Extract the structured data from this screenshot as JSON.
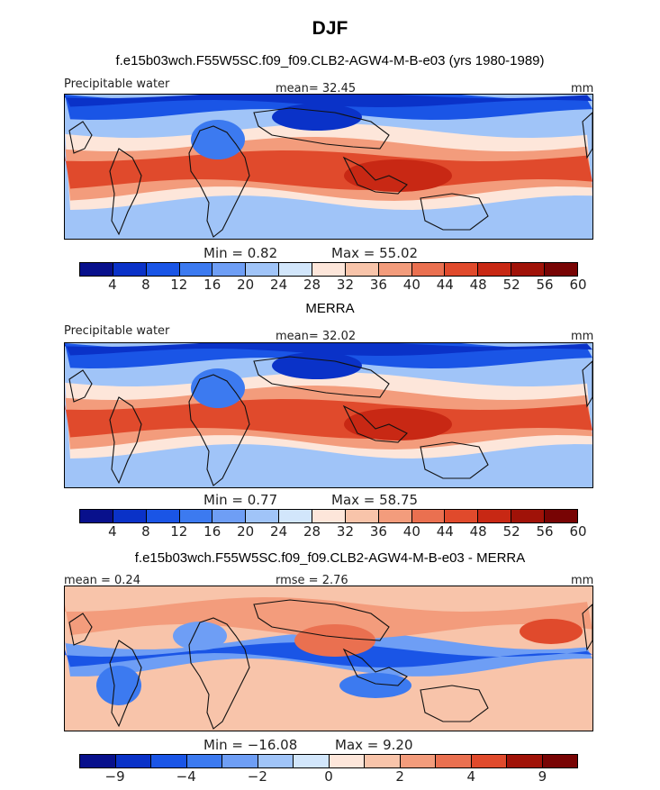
{
  "header": {
    "season": "DJF",
    "run_title": "f.e15b03wch.F55W5SC.f09_f09.CLB2-AGW4-M-B-e03 (yrs 1980-1989)"
  },
  "panels": [
    {
      "variable": "Precipitable water",
      "mean_text": "mean=   32.45",
      "units": "mm",
      "min_text": "Min =    0.82",
      "max_text": "Max =   55.02"
    },
    {
      "title": "MERRA",
      "variable": "Precipitable water",
      "mean_text": "mean=   32.02",
      "units": "mm",
      "min_text": "Min =    0.77",
      "max_text": "Max =   58.75"
    },
    {
      "title": "f.e15b03wch.F55W5SC.f09_f09.CLB2-AGW4-M-B-e03 - MERRA",
      "mean_text": "mean =    0.24",
      "rmse_text": "rmse =    2.76",
      "units": "mm",
      "min_text": "Min = −16.08",
      "max_text": "Max =    9.20"
    }
  ],
  "colorbars": {
    "abs_colors": [
      "#08108c",
      "#0a32c8",
      "#1a55e6",
      "#3c7af0",
      "#6e9ef5",
      "#a0c4f8",
      "#d2e6fb",
      "#fde6da",
      "#f8c4aa",
      "#f39c7c",
      "#ea7050",
      "#e04a2c",
      "#c82814",
      "#a01208",
      "#780404"
    ],
    "abs_labels": [
      "4",
      "8",
      "12",
      "16",
      "20",
      "24",
      "28",
      "32",
      "36",
      "40",
      "44",
      "48",
      "52",
      "56",
      "60"
    ],
    "diff_colors": [
      "#08108c",
      "#0a32c8",
      "#1a55e6",
      "#3c7af0",
      "#6e9ef5",
      "#a0c4f8",
      "#d2e6fb",
      "#fde6da",
      "#f8c4aa",
      "#f39c7c",
      "#ea7050",
      "#e04a2c",
      "#a01208",
      "#780404"
    ],
    "diff_labels": [
      "−9",
      "−4",
      "−2",
      "0",
      "2",
      "4",
      "9"
    ]
  },
  "chart_data": [
    {
      "type": "heatmap",
      "title": "f.e15b03wch.F55W5SC.f09_f09.CLB2-AGW4-M-B-e03 (yrs 1980-1989)",
      "variable": "Precipitable water",
      "units": "mm",
      "mean": 32.45,
      "min": 0.82,
      "max": 55.02,
      "contour_levels": [
        4,
        8,
        12,
        16,
        20,
        24,
        28,
        32,
        36,
        40,
        44,
        48,
        52,
        56,
        60
      ]
    },
    {
      "type": "heatmap",
      "title": "MERRA",
      "variable": "Precipitable water",
      "units": "mm",
      "mean": 32.02,
      "min": 0.77,
      "max": 58.75,
      "contour_levels": [
        4,
        8,
        12,
        16,
        20,
        24,
        28,
        32,
        36,
        40,
        44,
        48,
        52,
        56,
        60
      ]
    },
    {
      "type": "heatmap",
      "title": "f.e15b03wch.F55W5SC.f09_f09.CLB2-AGW4-M-B-e03 - MERRA",
      "units": "mm",
      "mean": 0.24,
      "rmse": 2.76,
      "min": -16.08,
      "max": 9.2,
      "contour_levels": [
        -9,
        -4,
        -2,
        0,
        2,
        4,
        9
      ]
    }
  ]
}
